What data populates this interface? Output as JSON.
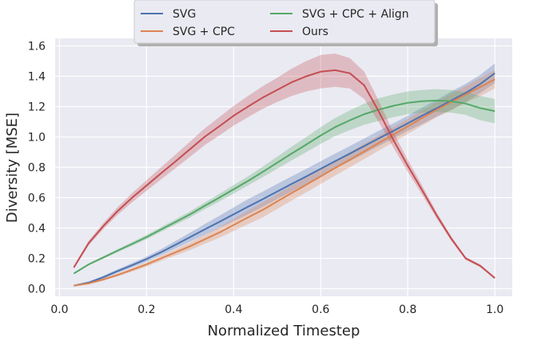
{
  "chart_data": {
    "type": "line",
    "title": "",
    "xlabel": "Normalized Timestep",
    "ylabel": "Diversity [MSE]",
    "xlim": [
      -0.01,
      1.04
    ],
    "ylim": [
      -0.05,
      1.65
    ],
    "xticks": [
      0.0,
      0.2,
      0.4,
      0.6,
      0.8,
      1.0
    ],
    "xtick_labels": [
      "0.0",
      "0.2",
      "0.4",
      "0.6",
      "0.8",
      "1.0"
    ],
    "yticks": [
      0.0,
      0.2,
      0.4,
      0.6,
      0.8,
      1.0,
      1.2,
      1.4,
      1.6
    ],
    "ytick_labels": [
      "0.0",
      "0.2",
      "0.4",
      "0.6",
      "0.8",
      "1.0",
      "1.2",
      "1.4",
      "1.6"
    ],
    "grid": true,
    "legend_position": "top-center",
    "x": [
      0.033,
      0.067,
      0.1,
      0.133,
      0.167,
      0.2,
      0.233,
      0.267,
      0.3,
      0.333,
      0.367,
      0.4,
      0.433,
      0.467,
      0.5,
      0.533,
      0.567,
      0.6,
      0.633,
      0.667,
      0.7,
      0.733,
      0.767,
      0.8,
      0.833,
      0.867,
      0.9,
      0.933,
      0.967,
      1.0
    ],
    "series": [
      {
        "name": "SVG",
        "color": "#4c72b0",
        "values": [
          0.02,
          0.04,
          0.075,
          0.115,
          0.155,
          0.195,
          0.24,
          0.29,
          0.34,
          0.39,
          0.44,
          0.49,
          0.54,
          0.59,
          0.64,
          0.69,
          0.74,
          0.79,
          0.84,
          0.89,
          0.94,
          0.99,
          1.04,
          1.09,
          1.14,
          1.19,
          1.24,
          1.29,
          1.35,
          1.42
        ],
        "spread": [
          0.005,
          0.008,
          0.01,
          0.012,
          0.014,
          0.017,
          0.02,
          0.025,
          0.03,
          0.035,
          0.04,
          0.045,
          0.05,
          0.05,
          0.05,
          0.05,
          0.05,
          0.05,
          0.05,
          0.05,
          0.05,
          0.05,
          0.05,
          0.05,
          0.055,
          0.055,
          0.06,
          0.06,
          0.06,
          0.065
        ]
      },
      {
        "name": "SVG + CPC",
        "color": "#dd8452",
        "values": [
          0.02,
          0.035,
          0.06,
          0.09,
          0.125,
          0.16,
          0.2,
          0.24,
          0.28,
          0.325,
          0.37,
          0.42,
          0.47,
          0.52,
          0.575,
          0.63,
          0.685,
          0.74,
          0.795,
          0.85,
          0.905,
          0.96,
          1.015,
          1.07,
          1.125,
          1.18,
          1.23,
          1.28,
          1.33,
          1.38
        ],
        "spread": [
          0.004,
          0.006,
          0.008,
          0.01,
          0.012,
          0.014,
          0.017,
          0.02,
          0.025,
          0.03,
          0.035,
          0.04,
          0.045,
          0.05,
          0.05,
          0.05,
          0.05,
          0.05,
          0.05,
          0.05,
          0.05,
          0.05,
          0.05,
          0.05,
          0.05,
          0.05,
          0.055,
          0.055,
          0.06,
          0.06
        ]
      },
      {
        "name": "SVG + CPC + Align",
        "color": "#55a868",
        "values": [
          0.1,
          0.16,
          0.205,
          0.25,
          0.295,
          0.34,
          0.39,
          0.44,
          0.49,
          0.545,
          0.6,
          0.655,
          0.71,
          0.77,
          0.83,
          0.89,
          0.95,
          1.01,
          1.065,
          1.11,
          1.15,
          1.18,
          1.205,
          1.225,
          1.235,
          1.24,
          1.235,
          1.22,
          1.19,
          1.17
        ],
        "spread": [
          0.004,
          0.006,
          0.008,
          0.01,
          0.012,
          0.014,
          0.016,
          0.018,
          0.02,
          0.022,
          0.025,
          0.028,
          0.03,
          0.035,
          0.04,
          0.045,
          0.05,
          0.055,
          0.06,
          0.065,
          0.07,
          0.075,
          0.075,
          0.075,
          0.075,
          0.075,
          0.075,
          0.075,
          0.08,
          0.08
        ]
      },
      {
        "name": "Ours",
        "color": "#c44e52",
        "values": [
          0.14,
          0.3,
          0.41,
          0.51,
          0.6,
          0.68,
          0.76,
          0.84,
          0.92,
          1.0,
          1.07,
          1.14,
          1.2,
          1.26,
          1.31,
          1.36,
          1.4,
          1.43,
          1.44,
          1.42,
          1.34,
          1.17,
          0.98,
          0.81,
          0.65,
          0.48,
          0.33,
          0.2,
          0.15,
          0.07
        ],
        "spread": [
          0.01,
          0.015,
          0.02,
          0.025,
          0.03,
          0.035,
          0.04,
          0.045,
          0.05,
          0.055,
          0.06,
          0.065,
          0.07,
          0.075,
          0.08,
          0.09,
          0.1,
          0.11,
          0.11,
          0.1,
          0.09,
          0.07,
          0.05,
          0.04,
          0.03,
          0.02,
          0.015,
          0.01,
          0.01,
          0.005
        ]
      }
    ]
  }
}
